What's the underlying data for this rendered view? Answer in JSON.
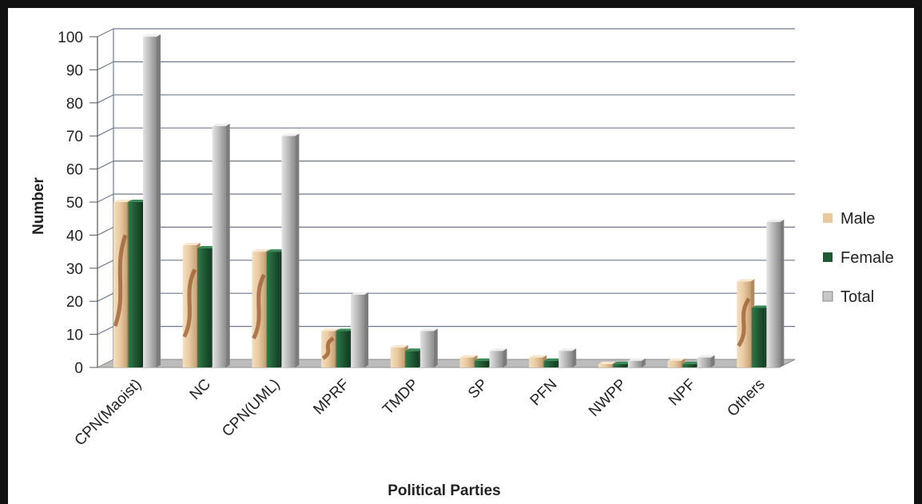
{
  "chart_data": {
    "type": "bar",
    "title": "",
    "xlabel": "Political Parties",
    "ylabel": "Number",
    "ylim": [
      0,
      100
    ],
    "yticks": [
      0,
      10,
      20,
      30,
      40,
      50,
      60,
      70,
      80,
      90,
      100
    ],
    "grid": true,
    "legend_position": "right",
    "categories": [
      "CPN(Maoist)",
      "NC",
      "CPN(UML)",
      "MPRF",
      "TMDP",
      "SP",
      "PFN",
      "NWPP",
      "NPF",
      "Others"
    ],
    "series": [
      {
        "name": "Male",
        "color": "#e8c9a0",
        "values": [
          50,
          37,
          35,
          11,
          6,
          3,
          3,
          1,
          2,
          26
        ]
      },
      {
        "name": "Female",
        "color": "#1f5a34",
        "values": [
          50,
          36,
          35,
          11,
          5,
          2,
          2,
          1,
          1,
          18
        ]
      },
      {
        "name": "Total",
        "color": "#c8c8c8",
        "values": [
          100,
          73,
          70,
          22,
          11,
          5,
          5,
          2,
          3,
          44
        ]
      }
    ]
  }
}
